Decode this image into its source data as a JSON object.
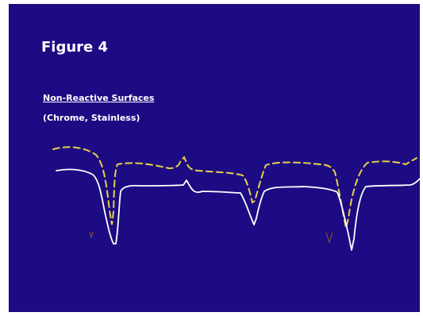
{
  "slide": {
    "title": "Figure 4",
    "heading": "Non-Reactive Surfaces",
    "subheading": "(Chrome, Stainless)"
  },
  "colors": {
    "background": "#1d0b83",
    "solid_trace": "#ffffff",
    "dashed_trace": "#e8d048",
    "marker": "#8a5a3a"
  },
  "traces": [
    {
      "name": "solid-trace",
      "style": "solid"
    },
    {
      "name": "dashed-trace",
      "style": "dashed"
    }
  ],
  "markers": [
    {
      "name": "v-marker-left",
      "shape": "v"
    },
    {
      "name": "v-marker-right",
      "shape": "v"
    }
  ]
}
